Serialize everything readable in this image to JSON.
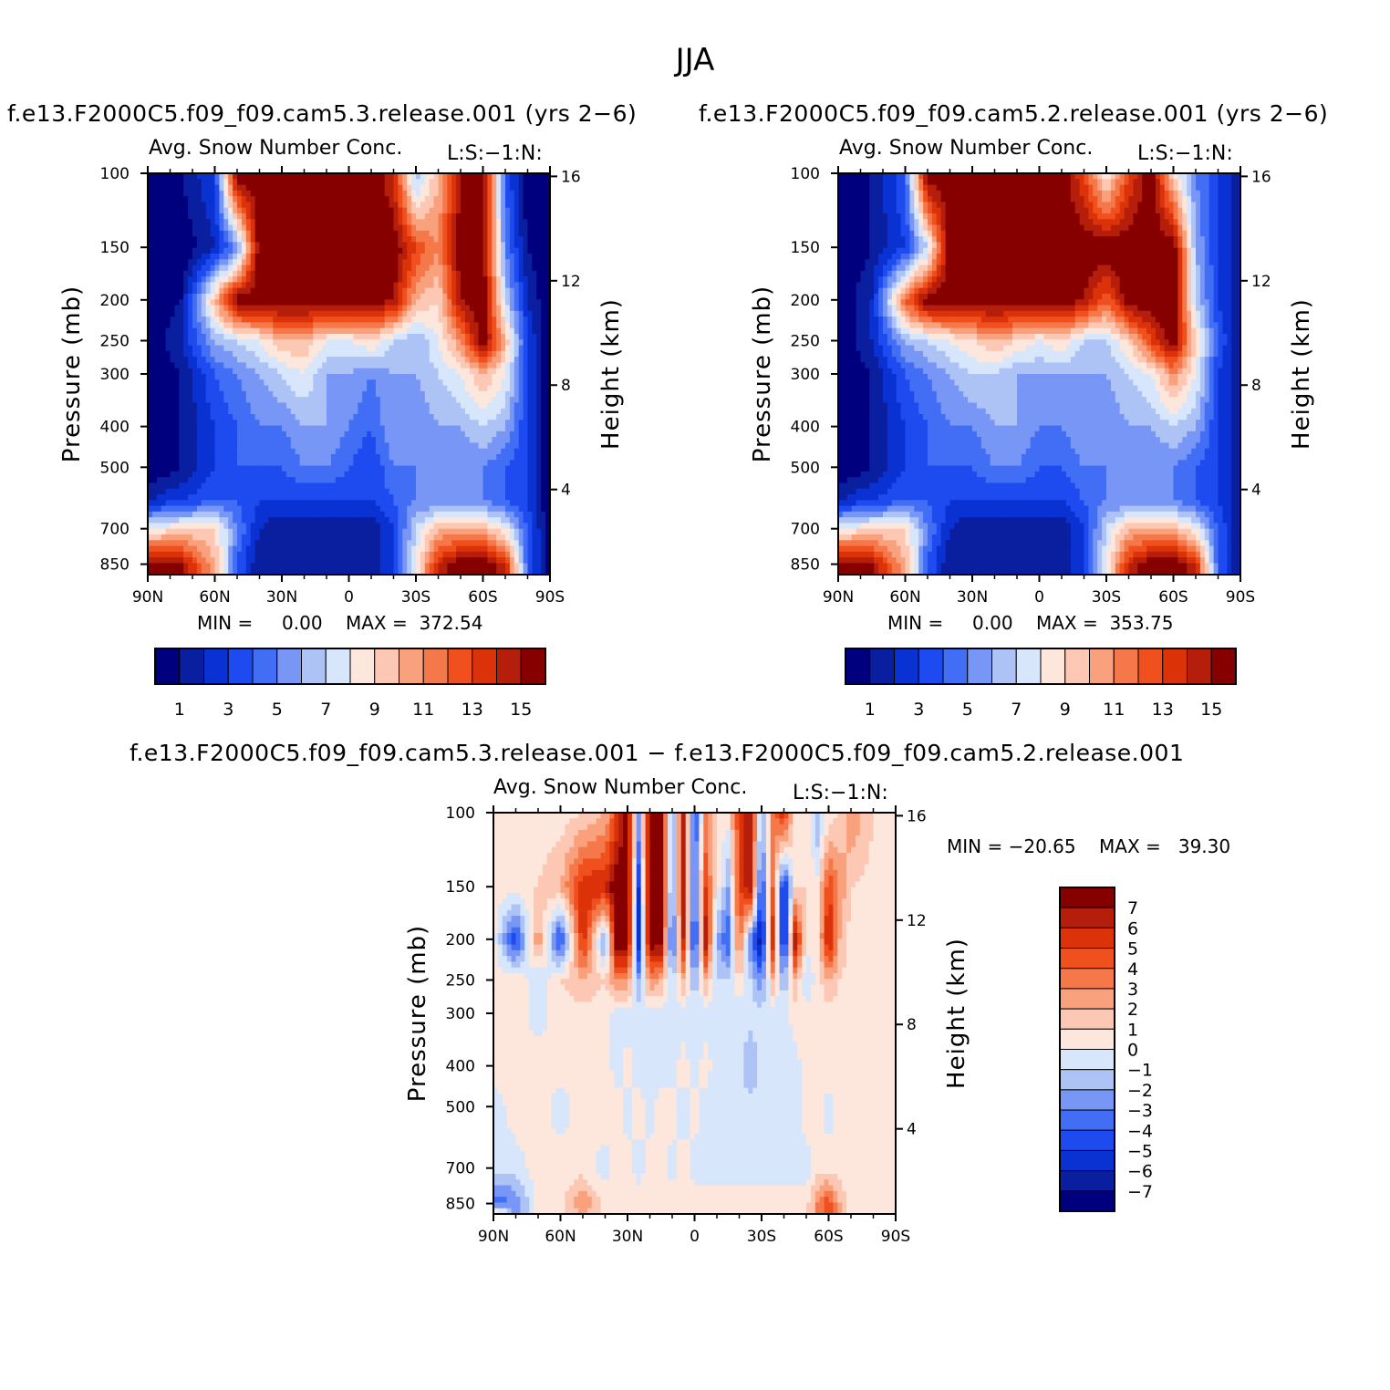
{
  "title": "JJA",
  "colors": {
    "palette": [
      "#00007f",
      "#0a1ea0",
      "#0a32d2",
      "#1e4bf0",
      "#416ef5",
      "#7896f5",
      "#adc3f5",
      "#d7e6fa",
      "#fde6dc",
      "#fcc8b4",
      "#f9a07c",
      "#f5784b",
      "#f0501e",
      "#dc320a",
      "#b41e0a",
      "#870000"
    ],
    "diff_palette": [
      "#00007f",
      "#0a1ea0",
      "#0a32d2",
      "#1e4bf0",
      "#416ef5",
      "#7896f5",
      "#adc3f5",
      "#d7e6fa",
      "#fde6dc",
      "#fcc8b4",
      "#f9a07c",
      "#f5784b",
      "#f0501e",
      "#dc320a",
      "#b41e0a",
      "#870000"
    ]
  },
  "panels": {
    "left": {
      "run_title": "f.e13.F2000C5.f09_f09.cam5.3.release.001 (yrs 2−6)",
      "subtitle": "Avg. Snow Number Conc.",
      "tag": "L:S:−1:N:",
      "minmax": "MIN =     0.00    MAX =  372.54"
    },
    "right": {
      "run_title": "f.e13.F2000C5.f09_f09.cam5.2.release.001 (yrs 2−6)",
      "subtitle": "Avg. Snow Number Conc.",
      "tag": "L:S:−1:N:",
      "minmax": "MIN =     0.00    MAX =  353.75"
    },
    "diff": {
      "run_title": "f.e13.F2000C5.f09_f09.cam5.3.release.001 − f.e13.F2000C5.f09_f09.cam5.2.release.001",
      "subtitle": "Avg. Snow Number Conc.",
      "tag": "L:S:−1:N:",
      "minmax": "MIN = −20.65    MAX =   39.30"
    }
  },
  "axes": {
    "ylabel": "Pressure (mb)",
    "y2label": "Height (km)",
    "pressure_ticks": [
      "100",
      "150",
      "200",
      "250",
      "300",
      "400",
      "500",
      "700",
      "850"
    ],
    "height_ticks": [
      "16",
      "12",
      "8",
      "4"
    ],
    "lat_ticks": [
      "90N",
      "60N",
      "30N",
      "0",
      "30S",
      "60S",
      "90S"
    ]
  },
  "colorbars": {
    "abs_labels": [
      "1",
      "3",
      "5",
      "7",
      "9",
      "11",
      "13",
      "15"
    ],
    "diff_labels": [
      "7",
      "6",
      "5",
      "4",
      "3",
      "2",
      "1",
      "0",
      "−1",
      "−2",
      "−3",
      "−4",
      "−5",
      "−6",
      "−7"
    ]
  },
  "chart_data": [
    {
      "type": "heatmap",
      "title": "f.e13.F2000C5.f09_f09.cam5.3.release.001 (yrs 2−6)",
      "subtitle": "Avg. Snow Number Conc.",
      "xlabel": "",
      "ylabel": "Pressure (mb)",
      "y2label": "Height (km)",
      "xlim": [
        90,
        -90
      ],
      "ylim": [
        100,
        900
      ],
      "contour_levels": [
        1,
        2,
        3,
        4,
        5,
        6,
        7,
        8,
        9,
        10,
        11,
        12,
        13,
        14,
        15
      ],
      "min": 0.0,
      "max": 372.54,
      "grid_lat": [
        90,
        75,
        60,
        50,
        40,
        30,
        20,
        10,
        0,
        -10,
        -20,
        -30,
        -40,
        -50,
        -60,
        -70,
        -80,
        -90
      ],
      "grid_p": [
        100,
        150,
        200,
        250,
        300,
        400,
        500,
        600,
        700,
        850,
        900
      ],
      "values": [
        [
          0,
          1,
          3,
          16,
          16,
          16,
          16,
          16,
          16,
          16,
          14,
          6,
          10,
          15,
          16,
          4,
          0,
          0
        ],
        [
          0,
          0,
          2,
          5,
          16,
          16,
          16,
          16,
          16,
          16,
          16,
          13,
          11,
          16,
          16,
          5,
          1,
          0
        ],
        [
          0,
          1,
          10,
          16,
          16,
          16,
          16,
          16,
          16,
          16,
          15,
          10,
          9,
          15,
          16,
          7,
          2,
          0
        ],
        [
          0,
          2,
          6,
          7,
          8,
          10,
          10,
          8,
          8,
          9,
          7,
          6,
          8,
          11,
          16,
          10,
          3,
          0
        ],
        [
          0,
          1,
          4,
          5,
          6,
          7,
          8,
          6,
          6,
          5,
          6,
          6,
          7,
          8,
          10,
          8,
          3,
          0
        ],
        [
          0,
          1,
          3,
          4,
          5,
          5,
          6,
          6,
          5,
          4,
          6,
          5,
          6,
          6,
          7,
          6,
          3,
          0
        ],
        [
          0,
          1,
          3,
          4,
          4,
          4,
          5,
          5,
          4,
          3,
          5,
          5,
          5,
          5,
          5,
          4,
          3,
          0
        ],
        [
          2,
          3,
          4,
          4,
          3,
          3,
          3,
          3,
          3,
          3,
          4,
          5,
          5,
          5,
          5,
          4,
          3,
          0
        ],
        [
          8,
          9,
          9,
          5,
          2,
          1,
          1,
          1,
          1,
          1,
          3,
          7,
          10,
          10,
          10,
          8,
          4,
          0
        ],
        [
          16,
          15,
          10,
          4,
          1,
          1,
          1,
          1,
          1,
          1,
          3,
          8,
          14,
          16,
          16,
          14,
          4,
          0
        ],
        [
          16,
          15,
          10,
          4,
          1,
          1,
          1,
          1,
          1,
          1,
          3,
          8,
          14,
          16,
          16,
          14,
          4,
          0
        ]
      ]
    },
    {
      "type": "heatmap",
      "title": "f.e13.F2000C5.f09_f09.cam5.2.release.001 (yrs 2−6)",
      "subtitle": "Avg. Snow Number Conc.",
      "xlabel": "",
      "ylabel": "Pressure (mb)",
      "y2label": "Height (km)",
      "xlim": [
        90,
        -90
      ],
      "ylim": [
        100,
        900
      ],
      "contour_levels": [
        1,
        2,
        3,
        4,
        5,
        6,
        7,
        8,
        9,
        10,
        11,
        12,
        13,
        14,
        15
      ],
      "min": 0.0,
      "max": 353.75,
      "grid_lat": [
        90,
        75,
        60,
        50,
        40,
        30,
        20,
        10,
        0,
        -10,
        -20,
        -30,
        -40,
        -50,
        -60,
        -70,
        -80,
        -90
      ],
      "grid_p": [
        100,
        150,
        200,
        250,
        300,
        400,
        500,
        600,
        700,
        850,
        900
      ],
      "values": [
        [
          0,
          1,
          4,
          16,
          16,
          16,
          16,
          16,
          16,
          16,
          13,
          8,
          13,
          16,
          9,
          5,
          3,
          1
        ],
        [
          0,
          1,
          3,
          7,
          16,
          16,
          16,
          16,
          16,
          16,
          16,
          16,
          16,
          16,
          16,
          6,
          3,
          1
        ],
        [
          0,
          2,
          12,
          16,
          16,
          16,
          16,
          16,
          16,
          16,
          15,
          12,
          16,
          16,
          16,
          7,
          3,
          1
        ],
        [
          0,
          2,
          6,
          7,
          8,
          9,
          10,
          9,
          8,
          9,
          7,
          7,
          9,
          13,
          16,
          9,
          4,
          1
        ],
        [
          0,
          1,
          4,
          5,
          6,
          7,
          7,
          6,
          6,
          6,
          6,
          6,
          7,
          8,
          11,
          8,
          3,
          1
        ],
        [
          0,
          1,
          3,
          4,
          5,
          5,
          6,
          6,
          5,
          5,
          6,
          5,
          6,
          6,
          7,
          6,
          3,
          1
        ],
        [
          0,
          1,
          3,
          4,
          4,
          4,
          5,
          5,
          4,
          4,
          5,
          5,
          5,
          5,
          5,
          4,
          3,
          1
        ],
        [
          2,
          3,
          4,
          4,
          3,
          3,
          3,
          3,
          3,
          3,
          4,
          5,
          5,
          5,
          5,
          4,
          3,
          1
        ],
        [
          8,
          9,
          9,
          5,
          2,
          1,
          1,
          1,
          1,
          1,
          3,
          7,
          10,
          10,
          10,
          8,
          4,
          1
        ],
        [
          16,
          15,
          10,
          4,
          1,
          1,
          1,
          1,
          1,
          1,
          3,
          8,
          14,
          16,
          16,
          14,
          4,
          1
        ],
        [
          16,
          15,
          10,
          4,
          1,
          1,
          1,
          1,
          1,
          1,
          3,
          8,
          14,
          16,
          16,
          14,
          4,
          1
        ]
      ]
    },
    {
      "type": "heatmap",
      "title": "f.e13.F2000C5.f09_f09.cam5.3.release.001 − f.e13.F2000C5.f09_f09.cam5.2.release.001",
      "subtitle": "Avg. Snow Number Conc.",
      "xlabel": "",
      "ylabel": "Pressure (mb)",
      "y2label": "Height (km)",
      "xlim": [
        90,
        -90
      ],
      "ylim": [
        100,
        900
      ],
      "contour_levels": [
        -7,
        -6,
        -5,
        -4,
        -3,
        -2,
        -1,
        0,
        1,
        2,
        3,
        4,
        5,
        6,
        7
      ],
      "min": -20.65,
      "max": 39.3,
      "grid_lat": [
        90,
        80,
        70,
        60,
        50,
        40,
        35,
        30,
        25,
        20,
        15,
        10,
        5,
        0,
        -5,
        -10,
        -15,
        -20,
        -25,
        -30,
        -35,
        -40,
        -45,
        -50,
        -55,
        -60,
        -65,
        -70,
        -80,
        -90
      ],
      "grid_p": [
        100,
        150,
        200,
        250,
        300,
        400,
        500,
        700,
        850,
        900
      ],
      "values": [
        [
          0.5,
          0.5,
          0.5,
          0.5,
          1,
          2,
          5,
          8,
          -2,
          8,
          8,
          -3,
          6,
          -5,
          3,
          0.5,
          0.5,
          5,
          7,
          -2,
          3,
          6,
          0.5,
          0.5,
          -2,
          0.5,
          1,
          3,
          1,
          0.5
        ],
        [
          0.5,
          0.5,
          1,
          2,
          6,
          6,
          8,
          8,
          -5,
          8,
          8,
          -3,
          6,
          -4,
          5,
          0.5,
          -2,
          5,
          7,
          -5,
          4,
          -6,
          1,
          1,
          0.5,
          5,
          3,
          1,
          0.5,
          0.5
        ],
        [
          0.5,
          -5,
          3,
          -5,
          6,
          -3,
          8,
          8,
          -6,
          8,
          8,
          -5,
          6,
          -6,
          7,
          -2,
          -4,
          4,
          -3,
          -7,
          6,
          -7,
          7,
          0.5,
          0.5,
          7,
          2,
          0.5,
          0.5,
          0.5
        ],
        [
          0.5,
          1,
          -1,
          1,
          2,
          1,
          3,
          3,
          -2,
          3,
          2,
          -1,
          2,
          -2,
          2,
          -1,
          -1,
          1,
          -1,
          -3,
          2,
          -2,
          2,
          -1,
          0.5,
          2,
          1,
          0.5,
          0.5,
          0.5
        ],
        [
          0.5,
          0.5,
          -0.5,
          0.5,
          0.5,
          0.5,
          -0.5,
          -0.5,
          -0.5,
          -0.5,
          -0.5,
          -0.5,
          -0.5,
          -0.5,
          -0.5,
          -0.5,
          -0.5,
          -0.5,
          -0.5,
          -0.5,
          -0.5,
          -0.5,
          0.5,
          0.5,
          0.5,
          0.5,
          0.5,
          0.5,
          0.5,
          0.5
        ],
        [
          0.5,
          0.5,
          0.5,
          0.5,
          0.5,
          0.5,
          -0.5,
          0.5,
          -0.5,
          -0.5,
          -0.5,
          -0.5,
          0.5,
          -0.5,
          0.5,
          -0.5,
          -0.5,
          -0.5,
          -2,
          -0.5,
          -0.5,
          -0.5,
          -0.5,
          0.5,
          0.5,
          0.5,
          0.5,
          0.5,
          0.5,
          0.5
        ],
        [
          -0.5,
          0.5,
          0.5,
          -0.5,
          0.5,
          0.5,
          0.5,
          -0.5,
          0.5,
          -0.5,
          0.5,
          0.5,
          -0.5,
          0.5,
          -0.5,
          -0.5,
          -0.5,
          -0.5,
          -0.5,
          -0.5,
          -0.5,
          -0.5,
          -0.5,
          0.5,
          0.5,
          -0.5,
          0.5,
          0.5,
          0.5,
          0.5
        ],
        [
          -0.5,
          -0.5,
          0.5,
          0.5,
          0.5,
          -0.5,
          0.5,
          0.5,
          -0.5,
          0.5,
          0.5,
          -0.5,
          0.5,
          -0.5,
          -0.5,
          -0.5,
          -0.5,
          -0.5,
          -0.5,
          -0.5,
          -0.5,
          -0.5,
          -0.5,
          -0.5,
          0.5,
          0.5,
          0.5,
          0.5,
          0.5,
          0.5
        ],
        [
          -4,
          -3,
          0.5,
          0.5,
          3,
          0.5,
          0.5,
          0.5,
          0.5,
          0.5,
          0.5,
          0.5,
          0.5,
          0.5,
          0.5,
          0.5,
          0.5,
          0.5,
          0.5,
          0.5,
          0.5,
          0.5,
          0.5,
          0.5,
          3,
          5,
          2,
          0.5,
          0.5,
          0.5
        ],
        [
          3,
          -3,
          0.5,
          0.5,
          2,
          0.5,
          0.5,
          0.5,
          0.5,
          0.5,
          0.5,
          0.5,
          0.5,
          0.5,
          0.5,
          0.5,
          0.5,
          0.5,
          0.5,
          0.5,
          0.5,
          0.5,
          0.5,
          0.5,
          3,
          5,
          2,
          0.5,
          0.5,
          0.5
        ]
      ]
    }
  ]
}
